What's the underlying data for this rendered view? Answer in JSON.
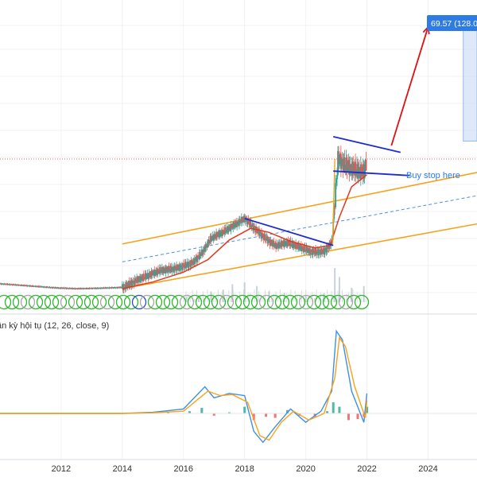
{
  "chart_data": [
    {
      "type": "candlestick",
      "panel": "price",
      "price_badge": {
        "text": "69.57 (128.0",
        "color": "#2e7be6"
      },
      "annotation": {
        "text": "Buy stop here",
        "color": "#2e7be6"
      },
      "current_price_line_color": "#e57373",
      "xlim": [
        2010.0,
        2025.6
      ],
      "x_ticks": [
        2012,
        2014,
        2016,
        2018,
        2020,
        2022,
        2024
      ],
      "colors": {
        "up": "#26a69a",
        "down": "#ef5350",
        "ma": "#e0391f",
        "channel": "#f7a21b",
        "channel_mid": "#4f8fe8",
        "trendline": "#1f2bd1",
        "arrow": "#e01010",
        "target_box": "#c7dcf4",
        "volume": "#b9c7cf"
      },
      "price_path": [
        [
          2010.0,
          14.1
        ],
        [
          2011.0,
          13.6
        ],
        [
          2011.8,
          13.2
        ],
        [
          2012.5,
          13.0
        ],
        [
          2013.2,
          13.1
        ],
        [
          2014.0,
          13.3
        ],
        [
          2014.6,
          15.3
        ],
        [
          2015.2,
          17.0
        ],
        [
          2015.8,
          17.6
        ],
        [
          2016.3,
          18.8
        ],
        [
          2016.6,
          21.0
        ],
        [
          2016.9,
          24.3
        ],
        [
          2017.3,
          25.7
        ],
        [
          2017.7,
          27.4
        ],
        [
          2018.0,
          28.7
        ],
        [
          2018.3,
          26.6
        ],
        [
          2018.7,
          24.1
        ],
        [
          2019.0,
          22.6
        ],
        [
          2019.4,
          23.3
        ],
        [
          2019.8,
          22.3
        ],
        [
          2020.2,
          21.2
        ],
        [
          2020.6,
          21.3
        ],
        [
          2020.85,
          23.3
        ],
        [
          2020.95,
          33.0
        ],
        [
          2021.05,
          42.0
        ],
        [
          2021.3,
          40.6
        ],
        [
          2021.6,
          39.6
        ],
        [
          2021.9,
          39.0
        ],
        [
          2022.0,
          42.0
        ]
      ],
      "moving_average": [
        [
          2014.0,
          13.0
        ],
        [
          2015.0,
          14.5
        ],
        [
          2016.0,
          16.7
        ],
        [
          2016.8,
          19.5
        ],
        [
          2017.5,
          23.9
        ],
        [
          2018.2,
          26.5
        ],
        [
          2018.8,
          25.6
        ],
        [
          2019.5,
          23.6
        ],
        [
          2020.3,
          22.1
        ],
        [
          2020.8,
          22.7
        ],
        [
          2021.1,
          29.0
        ],
        [
          2021.5,
          35.8
        ],
        [
          2022.0,
          38.5
        ]
      ],
      "channel_upper": [
        [
          2014.0,
          23.0
        ],
        [
          2025.6,
          39.0
        ]
      ],
      "channel_lower": [
        [
          2014.0,
          13.0
        ],
        [
          2025.6,
          27.5
        ]
      ],
      "channel_mid": [
        [
          2014.0,
          19.0
        ],
        [
          2025.6,
          33.8
        ]
      ],
      "trendlines": [
        [
          [
            2018.0,
            28.7
          ],
          [
            2020.9,
            22.7
          ]
        ],
        [
          [
            2020.9,
            47.0
          ],
          [
            2023.1,
            43.5
          ]
        ],
        [
          [
            2020.9,
            39.3
          ],
          [
            2023.4,
            38.3
          ]
        ]
      ],
      "arrow": [
        [
          2022.8,
          45.0
        ],
        [
          2024.0,
          71.5
        ]
      ],
      "target_box": {
        "x": [
          2025.15,
          2025.6
        ],
        "y": [
          46.0,
          72.5
        ]
      },
      "last_price_level": 42.0,
      "volume_spikes": [
        [
          2016.1,
          0.15
        ],
        [
          2016.5,
          0.2
        ],
        [
          2016.9,
          0.3
        ],
        [
          2017.3,
          0.35
        ],
        [
          2017.6,
          0.5
        ],
        [
          2018.0,
          0.55
        ],
        [
          2018.4,
          0.45
        ],
        [
          2018.8,
          0.3
        ],
        [
          2019.3,
          0.25
        ],
        [
          2020.0,
          0.2
        ],
        [
          2020.6,
          0.25
        ],
        [
          2020.95,
          0.95
        ],
        [
          2021.1,
          0.7
        ],
        [
          2021.5,
          0.4
        ],
        [
          2021.9,
          0.45
        ]
      ]
    },
    {
      "type": "line",
      "panel": "indicator",
      "title": "ần kỳ hội tụ (12, 26, close, 9)",
      "xlim": [
        2010.0,
        2025.6
      ],
      "series": [
        {
          "color": "#3d8fe8",
          "values": [
            [
              2010.0,
              0.0
            ],
            [
              2012.0,
              0.0
            ],
            [
              2014.0,
              0.0
            ],
            [
              2015.0,
              0.05
            ],
            [
              2016.0,
              0.2
            ],
            [
              2016.7,
              1.2
            ],
            [
              2017.0,
              0.7
            ],
            [
              2017.5,
              0.9
            ],
            [
              2018.0,
              0.8
            ],
            [
              2018.3,
              -0.8
            ],
            [
              2018.6,
              -1.3
            ],
            [
              2019.0,
              -0.6
            ],
            [
              2019.5,
              0.2
            ],
            [
              2020.0,
              -0.4
            ],
            [
              2020.5,
              0.1
            ],
            [
              2020.85,
              1.0
            ],
            [
              2021.0,
              3.7
            ],
            [
              2021.2,
              3.3
            ],
            [
              2021.5,
              1.0
            ],
            [
              2021.9,
              -0.4
            ],
            [
              2022.0,
              0.9
            ]
          ]
        },
        {
          "color": "#f7a21b",
          "values": [
            [
              2010.0,
              0.0
            ],
            [
              2012.0,
              0.0
            ],
            [
              2014.0,
              0.0
            ],
            [
              2015.0,
              0.03
            ],
            [
              2016.0,
              0.1
            ],
            [
              2016.8,
              1.0
            ],
            [
              2017.2,
              0.8
            ],
            [
              2017.6,
              0.85
            ],
            [
              2018.1,
              0.5
            ],
            [
              2018.5,
              -1.0
            ],
            [
              2018.8,
              -1.2
            ],
            [
              2019.2,
              -0.4
            ],
            [
              2019.6,
              0.1
            ],
            [
              2020.1,
              -0.3
            ],
            [
              2020.6,
              0.0
            ],
            [
              2020.95,
              1.6
            ],
            [
              2021.1,
              3.4
            ],
            [
              2021.3,
              3.0
            ],
            [
              2021.6,
              1.2
            ],
            [
              2021.95,
              -0.2
            ],
            [
              2022.0,
              0.6
            ]
          ]
        }
      ],
      "histogram": [
        [
          2015.0,
          0.03
        ],
        [
          2015.5,
          0.07
        ],
        [
          2016.2,
          0.1
        ],
        [
          2016.6,
          0.25
        ],
        [
          2017.0,
          -0.1
        ],
        [
          2017.5,
          0.05
        ],
        [
          2018.0,
          0.3
        ],
        [
          2018.3,
          -0.3
        ],
        [
          2018.7,
          -0.15
        ],
        [
          2019.0,
          -0.2
        ],
        [
          2019.4,
          0.15
        ],
        [
          2019.8,
          -0.1
        ],
        [
          2020.3,
          -0.15
        ],
        [
          2020.7,
          0.1
        ],
        [
          2020.9,
          0.5
        ],
        [
          2021.1,
          0.3
        ],
        [
          2021.4,
          -0.3
        ],
        [
          2021.7,
          -0.25
        ],
        [
          2021.9,
          -0.15
        ],
        [
          2022.0,
          0.3
        ]
      ]
    }
  ]
}
